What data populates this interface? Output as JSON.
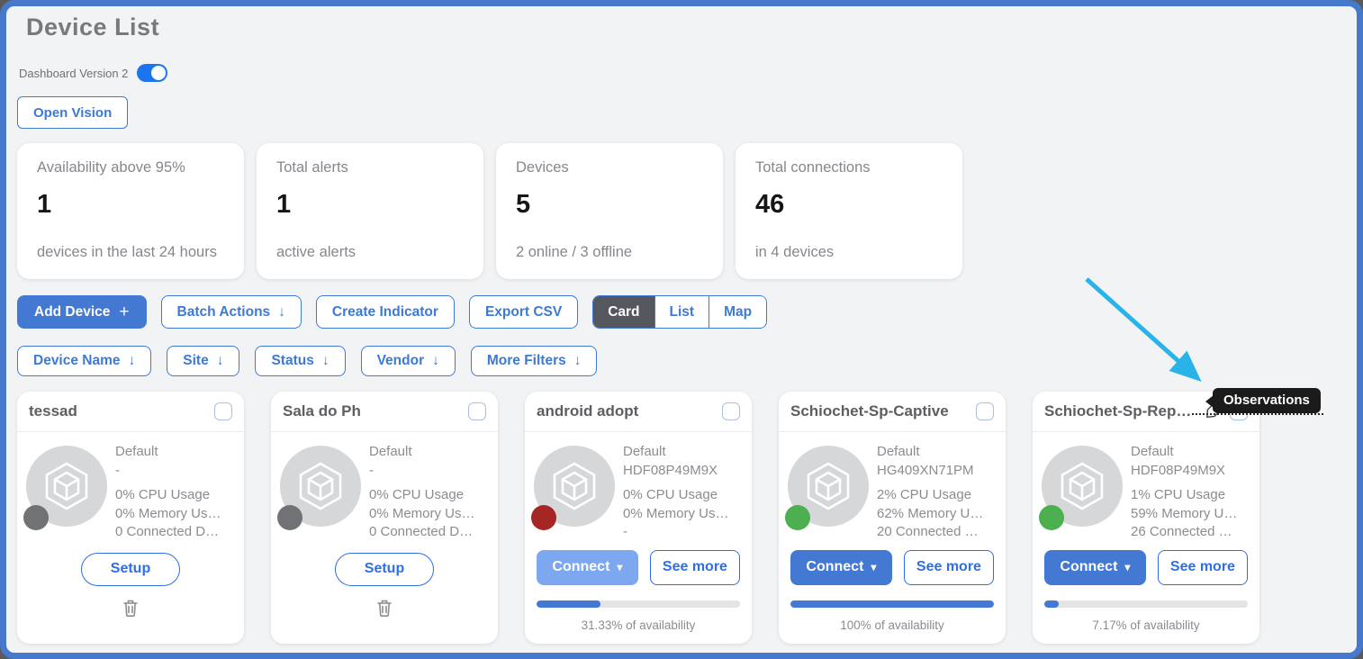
{
  "page": {
    "title": "Device List"
  },
  "header": {
    "version_label": "Dashboard Version 2",
    "version_toggle_on": true,
    "open_vision_label": "Open Vision"
  },
  "icons": {
    "plus": "+",
    "arrow_down": "↓",
    "caret_down": "▾"
  },
  "stats": [
    {
      "label": "Availability above 95%",
      "value": "1",
      "sub": "devices in the last 24 hours"
    },
    {
      "label": "Total alerts",
      "value": "1",
      "sub": "active alerts"
    },
    {
      "label": "Devices",
      "value": "5",
      "sub": "2 online / 3 offline"
    },
    {
      "label": "Total connections",
      "value": "46",
      "sub": "in 4 devices"
    }
  ],
  "toolbar": {
    "add_device_label": "Add Device",
    "batch_actions_label": "Batch Actions",
    "create_indicator_label": "Create Indicator",
    "export_csv_label": "Export CSV",
    "view_card": "Card",
    "view_list": "List",
    "view_map": "Map"
  },
  "filters": [
    {
      "label": "Device Name"
    },
    {
      "label": "Site"
    },
    {
      "label": "Status"
    },
    {
      "label": "Vendor"
    },
    {
      "label": "More Filters"
    }
  ],
  "card_labels": {
    "setup": "Setup",
    "connect": "Connect",
    "see_more": "See more"
  },
  "devices": [
    {
      "name": "tessad",
      "group": "Default",
      "serial": "-",
      "cpu": "0% CPU Usage",
      "memory": "0% Memory Us…",
      "connected": "0 Connected D…",
      "status_color": "#717275"
    },
    {
      "name": "Sala do Ph",
      "group": "Default",
      "serial": "-",
      "cpu": "0% CPU Usage",
      "memory": "0% Memory Us…",
      "connected": "0 Connected D…",
      "status_color": "#717275"
    },
    {
      "name": "android adopt",
      "group": "Default",
      "serial": "HDF08P49M9X",
      "cpu": "0% CPU Usage",
      "memory": "0% Memory Us…",
      "connected": "-",
      "status_color": "#a62626",
      "availability_pct": 31.33,
      "availability_text": "31.33% of availability"
    },
    {
      "name": "Schiochet-Sp-Captive",
      "group": "Default",
      "serial": "HG409XN71PM",
      "cpu": "2% CPU Usage",
      "memory": "62% Memory U…",
      "connected": "20 Connected …",
      "status_color": "#4caf50",
      "availability_pct": 100,
      "availability_text": "100% of availability"
    },
    {
      "name": "Schiochet-Sp-Rep…",
      "group": "Default",
      "serial": "HDF08P49M9X",
      "cpu": "1% CPU Usage",
      "memory": "59% Memory U…",
      "connected": "26 Connected …",
      "status_color": "#4caf50",
      "availability_pct": 7.17,
      "availability_text": "7.17% of availability"
    }
  ],
  "annotation": {
    "tooltip_label": "Observations"
  },
  "colors": {
    "frame_border": "#4679cb",
    "primary_blue": "#3e79d6",
    "button_fill_blue": "#4378d3",
    "connect_disabled_blue": "#7da8ef",
    "toggle_on_blue": "#1b74f0",
    "segment_active_dark": "#54585e",
    "status_offline_gray": "#717275",
    "status_alert_red": "#a62626",
    "status_online_green": "#4caf50",
    "annotation_arrow_cyan": "#29b3e8",
    "tooltip_black": "#1b1b1b"
  }
}
